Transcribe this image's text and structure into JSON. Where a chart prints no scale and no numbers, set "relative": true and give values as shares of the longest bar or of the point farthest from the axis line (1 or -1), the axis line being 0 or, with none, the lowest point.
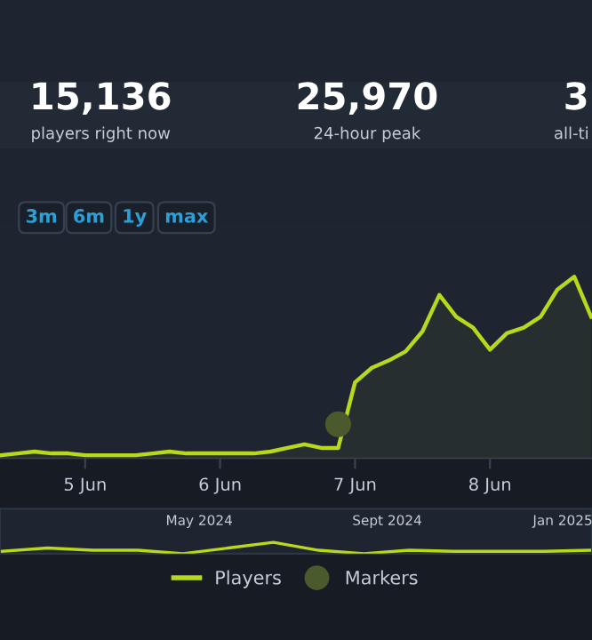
{
  "chart_data": [
    {
      "type": "line",
      "relative": true,
      "legend": "bottom",
      "annotations": [
        "15,136",
        "players right now",
        "25,970",
        "24-hour peak",
        "3",
        "all-ti",
        "3m",
        "6m",
        "1y",
        "max"
      ],
      "categories": [
        null,
        null,
        null,
        null,
        null,
        "5 Jun",
        null,
        null,
        null,
        null,
        null,
        null,
        null,
        "6 Jun",
        null,
        null,
        null,
        null,
        null,
        null,
        null,
        "7 Jun",
        null,
        null,
        null,
        null,
        null,
        null,
        null,
        "8 Jun",
        null,
        null,
        null,
        null,
        null,
        null
      ],
      "series": [
        {
          "name": "Players",
          "type": "area",
          "color": "#b8d81c",
          "marker": "none",
          "values": [
            0.02,
            0.03,
            0.04,
            0.03,
            0.03,
            0.02,
            0.02,
            0.02,
            0.02,
            0.03,
            0.04,
            0.03,
            0.03,
            0.03,
            0.03,
            0.03,
            0.04,
            0.06,
            0.08,
            0.06,
            0.06,
            0.42,
            0.5,
            0.54,
            0.59,
            0.7,
            0.9,
            0.78,
            0.72,
            0.6,
            0.69,
            0.72,
            0.78,
            0.93,
            1,
            0.78
          ]
        },
        {
          "name": "Markers",
          "type": "scatter",
          "color": "#4b5a2c",
          "marker": "circle",
          "values": [
            null,
            null,
            null,
            null,
            null,
            null,
            null,
            null,
            null,
            null,
            null,
            null,
            null,
            null,
            null,
            null,
            null,
            null,
            null,
            null,
            0.19,
            null,
            null,
            null,
            null,
            null,
            null,
            null,
            null,
            null,
            null,
            null,
            null,
            null,
            null,
            null
          ]
        }
      ]
    },
    {
      "type": "line",
      "relative": true,
      "annotations": [
        "May 2024",
        "Sept 2024",
        "Jan 2025"
      ],
      "categories": [
        null,
        null,
        null,
        null,
        null,
        null,
        null,
        null,
        null,
        null,
        null,
        null,
        null,
        null
      ],
      "series": [
        {
          "type": "line",
          "color": "#b8d81c",
          "values": [
            0.2,
            0.5,
            0.3,
            0.3,
            0,
            0.5,
            1,
            0.3,
            0,
            0.3,
            0.2,
            0.2,
            0.2,
            0.3
          ]
        }
      ]
    }
  ]
}
